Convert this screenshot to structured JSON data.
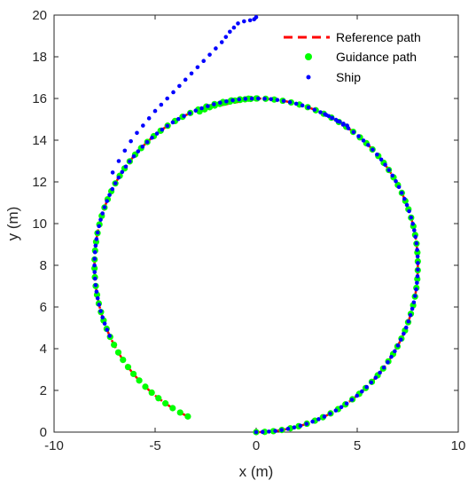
{
  "chart_data": {
    "type": "scatter",
    "title": "",
    "xlabel": "x (m)",
    "ylabel": "y (m)",
    "xlim": [
      -10,
      10
    ],
    "ylim": [
      0,
      20
    ],
    "xticks": [
      "-10",
      "-5",
      "0",
      "5",
      "10"
    ],
    "yticks": [
      "0",
      "2",
      "4",
      "6",
      "8",
      "10",
      "12",
      "14",
      "16",
      "18",
      "20"
    ],
    "grid": false,
    "legend_position": "top-right",
    "series": [
      {
        "name": "Reference path",
        "style": "dashed-line",
        "color": "#ff0000",
        "center": [
          0,
          8
        ],
        "radius": 8,
        "arc_start_deg": -90,
        "arc_end_deg": 245,
        "lead_in": [
          [
            0,
            16
          ],
          [
            -2.95,
            15.45
          ]
        ]
      },
      {
        "name": "Guidance path",
        "style": "dot",
        "color": "#00ff00",
        "x": [
          0.0,
          -0.27,
          -0.55,
          -0.8,
          -1.05,
          -1.3,
          -1.55,
          -1.8,
          -2.05,
          -2.3,
          -2.55,
          -2.8
        ],
        "y": [
          16.0,
          15.98,
          15.96,
          15.93,
          15.9,
          15.85,
          15.8,
          15.74,
          15.66,
          15.58,
          15.48,
          15.38
        ],
        "arc_center": [
          0,
          8
        ],
        "arc_radius": 8,
        "arc_start_deg": -90,
        "arc_end_deg": 245,
        "arc_points": 110
      },
      {
        "name": "Ship",
        "style": "dot",
        "color": "#0000ff",
        "x": [
          0.0,
          -0.1,
          -0.3,
          -0.6,
          -0.9,
          -1.1,
          -1.3,
          -1.5,
          -1.7,
          -2.0,
          -2.3,
          -2.6,
          -2.9,
          -3.2,
          -3.5,
          -3.8,
          -4.1,
          -4.4,
          -4.7,
          -5.0,
          -5.3,
          -5.6,
          -5.9,
          -6.2,
          -6.5,
          -6.8,
          -7.1
        ],
        "y": [
          19.9,
          19.8,
          19.75,
          19.7,
          19.6,
          19.4,
          19.2,
          18.95,
          18.7,
          18.4,
          18.1,
          17.8,
          17.5,
          17.2,
          16.9,
          16.6,
          16.3,
          16.0,
          15.7,
          15.4,
          15.05,
          14.7,
          14.35,
          13.95,
          13.5,
          13.0,
          12.45
        ],
        "arc_center": [
          0,
          8
        ],
        "arc_radius": 8,
        "arc_start_deg": -90,
        "arc_end_deg": 205,
        "arc_points": 130,
        "closing_segment": [
          [
            3.4,
            15.25
          ],
          [
            4.5,
            14.7
          ]
        ]
      }
    ]
  }
}
